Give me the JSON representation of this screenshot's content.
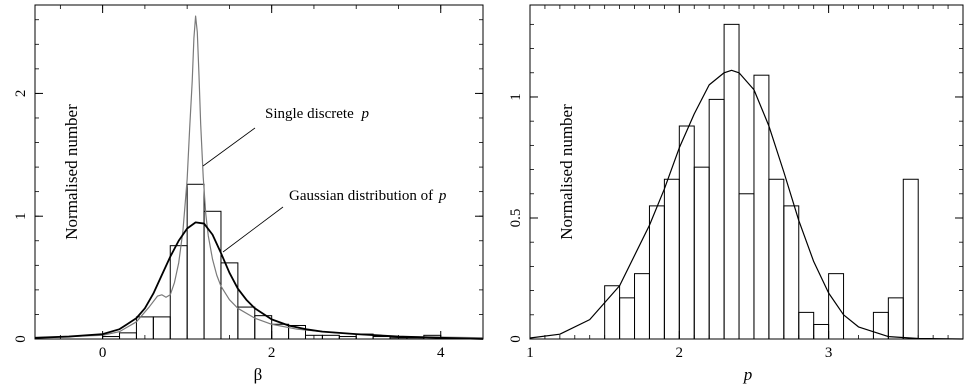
{
  "chart_data": [
    {
      "type": "bar",
      "xlabel": "β",
      "ylabel": "Normalised number",
      "xlim": [
        -0.8,
        4.5
      ],
      "ylim": [
        0,
        2.72
      ],
      "xticks": [
        "0",
        "2",
        "4"
      ],
      "yticks": [
        "0",
        "1",
        "2"
      ],
      "bin_width": 0.2,
      "histogram": {
        "bin_starts": [
          0.0,
          0.2,
          0.4,
          0.6,
          0.8,
          1.0,
          1.2,
          1.4,
          1.6,
          1.8,
          2.0,
          2.2,
          2.4,
          2.6,
          2.8,
          3.0,
          3.2,
          3.4,
          3.6,
          3.8
        ],
        "values": [
          0.02,
          0.05,
          0.18,
          0.18,
          0.76,
          1.26,
          1.04,
          0.62,
          0.26,
          0.19,
          0.12,
          0.11,
          0.03,
          0.03,
          0.02,
          0.04,
          0.02,
          0.01,
          0.01,
          0.03
        ]
      },
      "series": [
        {
          "name": "Single discrete p",
          "color": "#7a7a7a",
          "x": [
            -0.8,
            -0.4,
            0.0,
            0.2,
            0.4,
            0.55,
            0.65,
            0.7,
            0.75,
            0.8,
            0.85,
            0.9,
            0.95,
            1.0,
            1.03,
            1.06,
            1.08,
            1.1,
            1.12,
            1.14,
            1.16,
            1.19,
            1.22,
            1.25,
            1.3,
            1.35,
            1.4,
            1.5,
            1.6,
            1.8,
            2.0,
            2.3,
            2.6,
            3.0,
            3.5,
            4.5
          ],
          "values": [
            0.01,
            0.02,
            0.03,
            0.06,
            0.14,
            0.26,
            0.35,
            0.36,
            0.34,
            0.36,
            0.46,
            0.62,
            0.88,
            1.3,
            1.72,
            2.1,
            2.45,
            2.63,
            2.5,
            2.15,
            1.75,
            1.32,
            1.02,
            0.84,
            0.65,
            0.52,
            0.43,
            0.32,
            0.25,
            0.17,
            0.12,
            0.08,
            0.06,
            0.04,
            0.02,
            0.01
          ]
        },
        {
          "name": "Gaussian distribution of p",
          "color": "#000000",
          "x": [
            -0.8,
            -0.4,
            0.0,
            0.2,
            0.4,
            0.5,
            0.6,
            0.7,
            0.8,
            0.9,
            1.0,
            1.1,
            1.2,
            1.3,
            1.4,
            1.5,
            1.6,
            1.7,
            1.8,
            2.0,
            2.2,
            2.4,
            2.6,
            3.0,
            3.5,
            4.0,
            4.5
          ],
          "values": [
            0.01,
            0.02,
            0.04,
            0.08,
            0.17,
            0.25,
            0.37,
            0.52,
            0.67,
            0.8,
            0.9,
            0.95,
            0.94,
            0.85,
            0.7,
            0.54,
            0.41,
            0.32,
            0.25,
            0.16,
            0.11,
            0.08,
            0.06,
            0.04,
            0.02,
            0.01,
            0.0
          ]
        }
      ],
      "annotations": [
        {
          "text_main": "Single discrete ",
          "text_var": "p",
          "points_to": {
            "x": 1.22,
            "y": 1.42
          }
        },
        {
          "text_main": "Gaussian distribution of ",
          "text_var": "p",
          "points_to": {
            "x": 1.46,
            "y": 0.7
          }
        }
      ]
    },
    {
      "type": "bar",
      "xlabel": "p",
      "ylabel": "Normalised number",
      "xlim": [
        1.0,
        3.9
      ],
      "ylim": [
        0,
        1.38
      ],
      "xticks": [
        "1",
        "2",
        "3"
      ],
      "yticks": [
        "0",
        "0.5",
        "1"
      ],
      "bin_width": 0.1,
      "histogram": {
        "bin_starts": [
          1.5,
          1.6,
          1.7,
          1.8,
          1.9,
          2.0,
          2.1,
          2.2,
          2.3,
          2.4,
          2.5,
          2.6,
          2.7,
          2.8,
          2.9,
          3.0,
          3.1,
          3.2,
          3.3,
          3.4,
          3.5
        ],
        "values": [
          0.22,
          0.17,
          0.27,
          0.55,
          0.66,
          0.88,
          0.71,
          0.99,
          1.3,
          0.6,
          1.09,
          0.66,
          0.55,
          0.11,
          0.06,
          0.27,
          0.0,
          0.0,
          0.11,
          0.17,
          0.66
        ]
      },
      "series": [
        {
          "name": "",
          "color": "#000000",
          "x": [
            1.0,
            1.2,
            1.4,
            1.6,
            1.8,
            1.9,
            2.0,
            2.1,
            2.2,
            2.3,
            2.35,
            2.4,
            2.5,
            2.6,
            2.7,
            2.8,
            2.9,
            3.0,
            3.1,
            3.2,
            3.4,
            3.6,
            3.9
          ],
          "values": [
            0.004,
            0.02,
            0.08,
            0.22,
            0.47,
            0.62,
            0.79,
            0.93,
            1.05,
            1.1,
            1.11,
            1.1,
            1.03,
            0.88,
            0.69,
            0.49,
            0.32,
            0.19,
            0.1,
            0.05,
            0.01,
            0.002,
            0.0
          ]
        }
      ]
    }
  ]
}
